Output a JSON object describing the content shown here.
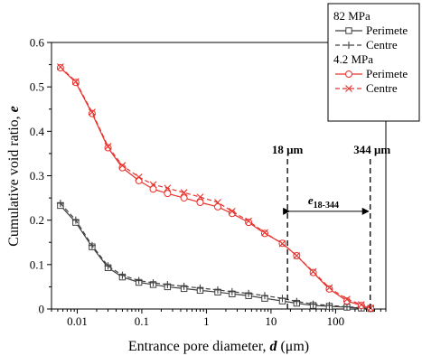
{
  "chart_data": {
    "type": "line",
    "xscale": "log",
    "xlim": [
      0.004,
      600
    ],
    "ylim": [
      0,
      0.6
    ],
    "xlabel_prefix": "Entrance pore diameter, ",
    "xlabel_var": "d",
    "xlabel_unit": " (μm)",
    "ylabel_prefix": "Cumulative void ratio, ",
    "ylabel_var": "e",
    "x_ticks": [
      {
        "value": 0.01,
        "label": "0.01"
      },
      {
        "value": 0.1,
        "label": "0.1"
      },
      {
        "value": 1,
        "label": "1"
      },
      {
        "value": 10,
        "label": "10"
      },
      {
        "value": 100,
        "label": "100"
      }
    ],
    "y_ticks": [
      {
        "value": 0,
        "label": "0"
      },
      {
        "value": 0.1,
        "label": "0.1"
      },
      {
        "value": 0.2,
        "label": "0.2"
      },
      {
        "value": 0.3,
        "label": "0.3"
      },
      {
        "value": 0.4,
        "label": "0.4"
      },
      {
        "value": 0.5,
        "label": "0.5"
      },
      {
        "value": 0.6,
        "label": "0.6"
      }
    ],
    "groups": [
      {
        "title": "82 MPa",
        "series_indices": [
          0,
          1
        ]
      },
      {
        "title": "4.2 MPa",
        "series_indices": [
          2,
          3
        ]
      }
    ],
    "series": [
      {
        "name": "Perimete",
        "color": "#404040",
        "dash": "solid",
        "marker": "square",
        "x": [
          0.0055,
          0.0095,
          0.017,
          0.03,
          0.05,
          0.09,
          0.15,
          0.25,
          0.45,
          0.8,
          1.5,
          2.5,
          4.5,
          8,
          15,
          25,
          45,
          80,
          150,
          250,
          350
        ],
        "y": [
          0.233,
          0.195,
          0.14,
          0.093,
          0.072,
          0.06,
          0.055,
          0.05,
          0.046,
          0.042,
          0.038,
          0.034,
          0.03,
          0.024,
          0.018,
          0.013,
          0.008,
          0.006,
          0.004,
          0.002,
          0.001
        ]
      },
      {
        "name": "Centre",
        "color": "#404040",
        "dash": "dashed",
        "marker": "plus",
        "x": [
          0.0055,
          0.0095,
          0.017,
          0.03,
          0.05,
          0.09,
          0.15,
          0.25,
          0.45,
          0.8,
          1.5,
          2.5,
          4.5,
          8,
          15,
          25,
          45,
          80,
          150,
          250,
          350
        ],
        "y": [
          0.238,
          0.2,
          0.143,
          0.097,
          0.076,
          0.064,
          0.059,
          0.055,
          0.051,
          0.047,
          0.043,
          0.039,
          0.035,
          0.03,
          0.024,
          0.017,
          0.011,
          0.008,
          0.005,
          0.003,
          0.001
        ]
      },
      {
        "name": "Perimete",
        "color": "#e8312b",
        "dash": "solid",
        "marker": "circle",
        "x": [
          0.0055,
          0.0095,
          0.017,
          0.03,
          0.05,
          0.09,
          0.15,
          0.25,
          0.45,
          0.8,
          1.5,
          2.5,
          4.5,
          8,
          15,
          25,
          45,
          80,
          150,
          250,
          350
        ],
        "y": [
          0.543,
          0.51,
          0.44,
          0.363,
          0.318,
          0.289,
          0.27,
          0.26,
          0.25,
          0.24,
          0.23,
          0.215,
          0.195,
          0.17,
          0.148,
          0.12,
          0.082,
          0.045,
          0.018,
          0.008,
          0.002
        ]
      },
      {
        "name": "Centre",
        "color": "#e8312b",
        "dash": "dashed",
        "marker": "x",
        "x": [
          0.0055,
          0.0095,
          0.017,
          0.03,
          0.05,
          0.09,
          0.15,
          0.25,
          0.45,
          0.8,
          1.5,
          2.5,
          4.5,
          8,
          15,
          25,
          45,
          80,
          150,
          250,
          350
        ],
        "y": [
          0.545,
          0.512,
          0.443,
          0.366,
          0.323,
          0.297,
          0.28,
          0.272,
          0.262,
          0.252,
          0.24,
          0.22,
          0.198,
          0.172,
          0.147,
          0.12,
          0.084,
          0.048,
          0.022,
          0.01,
          0.002
        ]
      }
    ],
    "annotations": {
      "vlines": [
        {
          "x": 18,
          "label": "18 μm"
        },
        {
          "x": 344,
          "label": "344 μm"
        }
      ],
      "span": {
        "from": 18,
        "to": 344,
        "y": 0.22,
        "label_var": "e",
        "label_sub": "18-344"
      }
    },
    "legend_placement": "top-right",
    "grid": false
  }
}
